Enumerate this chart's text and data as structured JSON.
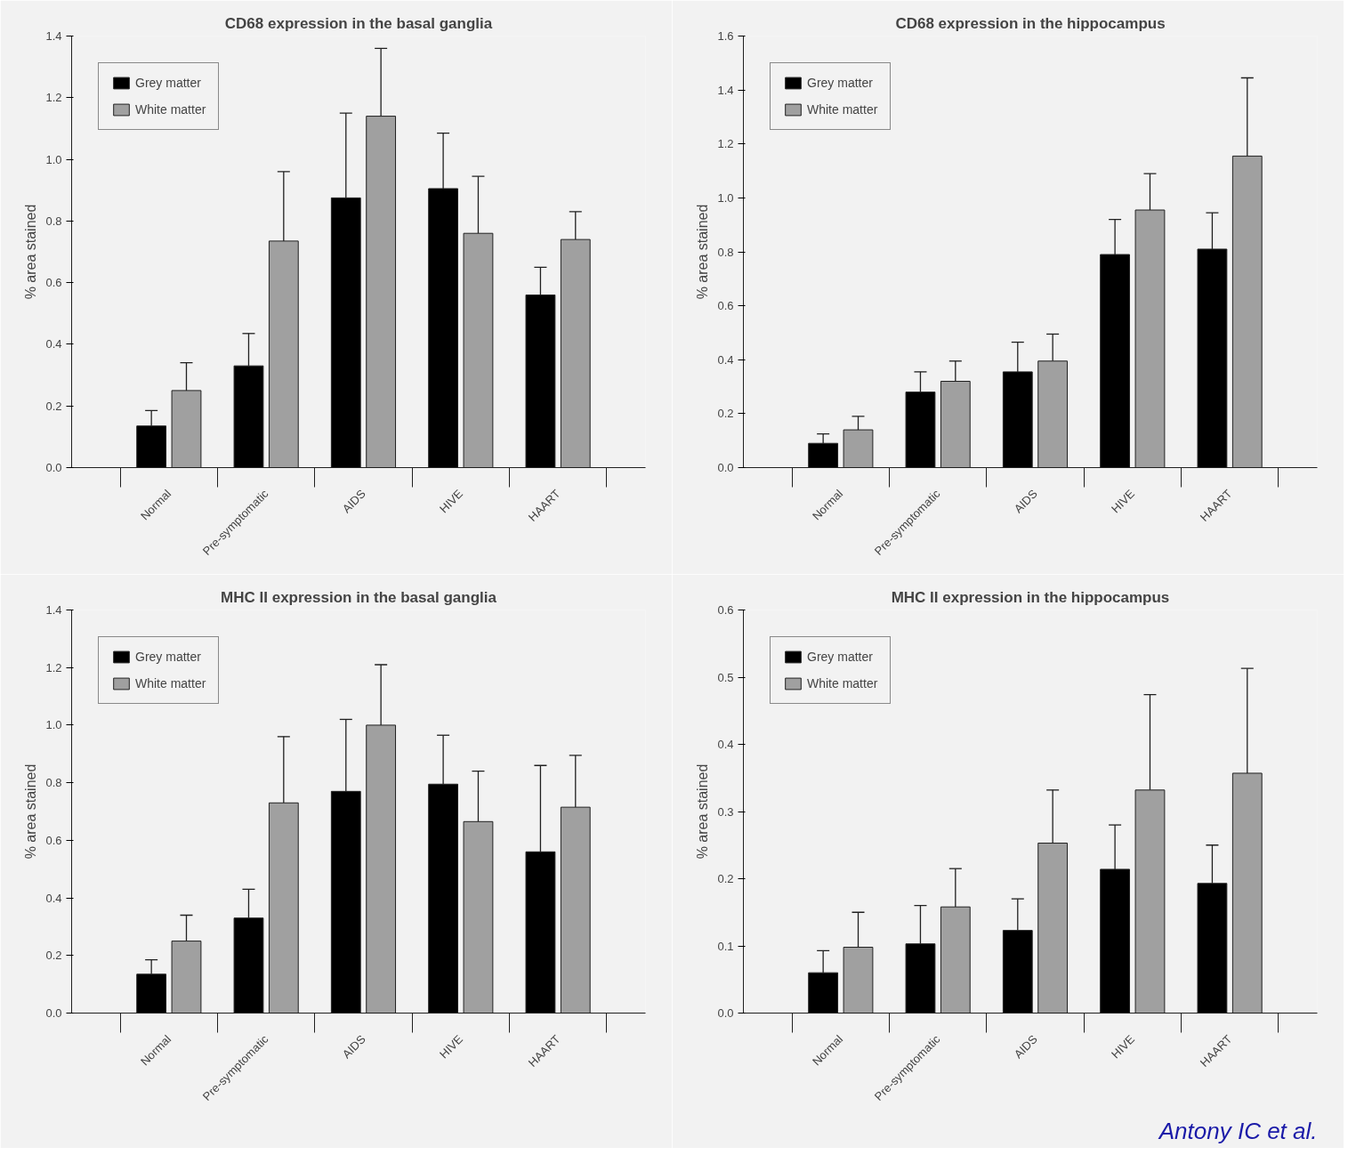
{
  "chart_data": [
    {
      "type": "bar",
      "title": "CD68 expression in the basal ganglia",
      "ylabel": "% area stained",
      "categories": [
        "Normal",
        "Pre-symptomatic",
        "AIDS",
        "HIVE",
        "HAART"
      ],
      "ylim": [
        0,
        1.4
      ],
      "yticks": [
        "0.0",
        0.2,
        0.4,
        0.6,
        0.8,
        "1.0",
        1.2,
        1.4
      ],
      "legend": "top left",
      "grid": false,
      "series": [
        {
          "name": "Grey matter",
          "color": "#000000",
          "values": [
            0.135,
            0.33,
            0.875,
            0.905,
            0.56
          ],
          "errors": [
            [
              0.135,
              0.185
            ],
            [
              0.33,
              0.435
            ],
            [
              0.875,
              1.15
            ],
            [
              0.905,
              1.085
            ],
            [
              0.56,
              0.65
            ]
          ]
        },
        {
          "name": "White matter",
          "color": "#a0a0a0",
          "values": [
            0.25,
            0.735,
            1.14,
            0.76,
            0.74
          ],
          "errors": [
            [
              0.25,
              0.34
            ],
            [
              0.735,
              0.96
            ],
            [
              1.14,
              1.36
            ],
            [
              0.76,
              0.945
            ],
            [
              0.74,
              0.83
            ]
          ]
        }
      ]
    },
    {
      "type": "bar",
      "title": "CD68 expression in the hippocampus",
      "ylabel": "% area stained",
      "categories": [
        "Normal",
        "Pre-symptomatic",
        "AIDS",
        "HIVE",
        "HAART"
      ],
      "ylim": [
        0,
        1.6
      ],
      "yticks": [
        "0.0",
        0.2,
        0.4,
        0.6,
        0.8,
        "1.0",
        1.2,
        1.4,
        1.6
      ],
      "legend": "top left",
      "grid": false,
      "series": [
        {
          "name": "Grey matter",
          "color": "#000000",
          "values": [
            0.09,
            0.28,
            0.355,
            0.79,
            0.81
          ],
          "errors": [
            [
              0.09,
              0.125
            ],
            [
              0.28,
              0.355
            ],
            [
              0.355,
              0.465
            ],
            [
              0.79,
              0.92
            ],
            [
              0.81,
              0.945
            ]
          ]
        },
        {
          "name": "White matter",
          "color": "#a0a0a0",
          "values": [
            0.14,
            0.32,
            0.395,
            0.955,
            1.155
          ],
          "errors": [
            [
              0.14,
              0.19
            ],
            [
              0.32,
              0.395
            ],
            [
              0.395,
              0.495
            ],
            [
              0.955,
              1.09
            ],
            [
              1.155,
              1.445
            ]
          ]
        }
      ]
    },
    {
      "type": "bar",
      "title": "MHC II expression in the basal ganglia",
      "ylabel": "% area stained",
      "categories": [
        "Normal",
        "Pre-symptomatic",
        "AIDS",
        "HIVE",
        "HAART"
      ],
      "ylim": [
        0,
        1.4
      ],
      "yticks": [
        "0.0",
        0.2,
        0.4,
        0.6,
        0.8,
        "1.0",
        1.2,
        1.4
      ],
      "legend": "top left",
      "grid": false,
      "series": [
        {
          "name": "Grey matter",
          "color": "#000000",
          "values": [
            0.135,
            0.33,
            0.77,
            0.795,
            0.56
          ],
          "errors": [
            [
              0.135,
              0.185
            ],
            [
              0.33,
              0.43
            ],
            [
              0.77,
              1.02
            ],
            [
              0.795,
              0.965
            ],
            [
              0.56,
              0.86
            ]
          ]
        },
        {
          "name": "White matter",
          "color": "#a0a0a0",
          "values": [
            0.25,
            0.73,
            1.0,
            0.665,
            0.715
          ],
          "errors": [
            [
              0.25,
              0.34
            ],
            [
              0.73,
              0.96
            ],
            [
              1.0,
              1.21
            ],
            [
              0.665,
              0.84
            ],
            [
              0.715,
              0.895
            ]
          ]
        }
      ]
    },
    {
      "type": "bar",
      "title": "MHC II expression in the hippocampus",
      "ylabel": "% area stained",
      "categories": [
        "Normal",
        "Pre-symptomatic",
        "AIDS",
        "HIVE",
        "HAART"
      ],
      "ylim": [
        0,
        0.6
      ],
      "yticks": [
        {
          "value": 0,
          "label": "0.0"
        },
        0.1,
        0.2,
        0.3,
        0.4,
        0.5,
        0.6
      ],
      "legend": "top left",
      "grid": false,
      "annotations": [
        "Antony IC et al."
      ],
      "series": [
        {
          "name": "Grey matter",
          "color": "#000000",
          "values": [
            0.06,
            0.103,
            0.123,
            0.214,
            0.193
          ],
          "errors": [
            [
              0.06,
              0.093
            ],
            [
              0.103,
              0.16
            ],
            [
              0.123,
              0.17
            ],
            [
              0.214,
              0.28
            ],
            [
              0.193,
              0.25
            ]
          ]
        },
        {
          "name": "White matter",
          "color": "#a0a0a0",
          "values": [
            0.098,
            0.158,
            0.253,
            0.332,
            0.357
          ],
          "errors": [
            [
              0.098,
              0.15
            ],
            [
              0.158,
              0.215
            ],
            [
              0.253,
              0.332
            ],
            [
              0.332,
              0.474
            ],
            [
              0.357,
              0.513
            ]
          ]
        }
      ]
    }
  ]
}
